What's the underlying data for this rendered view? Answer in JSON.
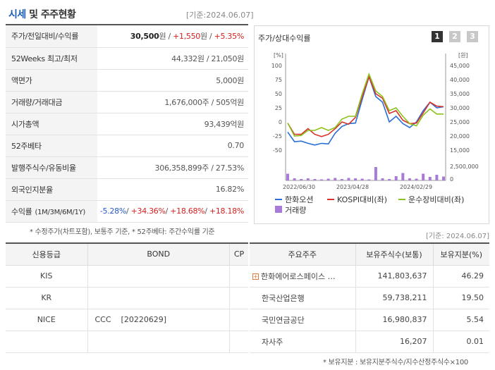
{
  "header": {
    "title_highlight": "시세",
    "title_rest": "및 주주현황",
    "date": "[기준:2024.06.07]"
  },
  "info_rows": [
    {
      "label": "주가/전일대비/수익률",
      "parts": [
        {
          "t": "30,500",
          "c": "b"
        },
        {
          "t": "원 / ",
          "c": ""
        },
        {
          "t": "+1,550",
          "c": "red"
        },
        {
          "t": "원 / ",
          "c": ""
        },
        {
          "t": "+5.35%",
          "c": "red"
        }
      ]
    },
    {
      "label": "52Weeks 최고/최저",
      "parts": [
        {
          "t": "44,332원 / 21,050원",
          "c": ""
        }
      ]
    },
    {
      "label": "액면가",
      "parts": [
        {
          "t": "5,000원",
          "c": ""
        }
      ]
    },
    {
      "label": "거래량/거래대금",
      "parts": [
        {
          "t": "1,676,000주 / 505억원",
          "c": ""
        }
      ]
    },
    {
      "label": "시가총액",
      "parts": [
        {
          "t": "93,439억원",
          "c": ""
        }
      ]
    },
    {
      "label": "52주베타",
      "parts": [
        {
          "t": "0.70",
          "c": ""
        }
      ]
    },
    {
      "label": "발행주식수/유동비율",
      "parts": [
        {
          "t": "306,358,899주 / 27.53%",
          "c": ""
        }
      ]
    },
    {
      "label": "외국인지분율",
      "parts": [
        {
          "t": "16.82%",
          "c": ""
        }
      ]
    },
    {
      "label": "수익률",
      "label_small": "(1M/3M/6M/1Y)",
      "parts": [
        {
          "t": "-5.28%",
          "c": "blue"
        },
        {
          "t": "/ ",
          "c": ""
        },
        {
          "t": "+34.36%",
          "c": "red"
        },
        {
          "t": "/ ",
          "c": ""
        },
        {
          "t": "+18.68%",
          "c": "red"
        },
        {
          "t": "/ ",
          "c": ""
        },
        {
          "t": "+18.18%",
          "c": "red"
        }
      ]
    }
  ],
  "info_note": "* 수정주가(차트포함), 보통주 기준, * 52주베타: 주간수익률 기준",
  "chart_section": {
    "title": "주가/상대수익률",
    "tabs": [
      "1",
      "2",
      "3"
    ],
    "date": "[기준: 2024.06.07]"
  },
  "chart_data": {
    "type": "line",
    "left_axis_unit": "[%]",
    "right_axis_unit": "[원]",
    "left_ticks": [
      "100",
      "75",
      "50",
      "25",
      "0",
      "-25",
      "-50"
    ],
    "right_ticks": [
      "45,000",
      "40,000",
      "35,000",
      "30,000",
      "25,000",
      "20,000",
      "15,000"
    ],
    "vol_tick": "2,500,000",
    "vol_zero": "0",
    "x_labels": [
      "2022/06/30",
      "2023/04/28",
      "2024/02/29"
    ],
    "ylim_left": [
      -50,
      100
    ],
    "colors": {
      "price": "#2b6ed6",
      "kospi": "#d8332a",
      "sector": "#8cc21b",
      "volume": "#a77bd6"
    },
    "series": [
      {
        "name": "한화오션",
        "axis": "left",
        "values": [
          -18,
          -35,
          -34,
          -38,
          -41,
          -38,
          -39,
          -20,
          -8,
          -3,
          -2,
          40,
          80,
          45,
          35,
          0,
          10,
          -3,
          -10,
          0,
          20,
          35,
          25,
          27
        ]
      },
      {
        "name": "KOSPI대비(좌)",
        "axis": "left",
        "values": [
          -2,
          -22,
          -22,
          -12,
          -22,
          -26,
          -22,
          -12,
          0,
          -4,
          8,
          45,
          80,
          50,
          42,
          15,
          20,
          3,
          -3,
          -2,
          16,
          35,
          28,
          27
        ]
      },
      {
        "name": "운수장비대비(좌)",
        "axis": "left",
        "values": [
          -2,
          -25,
          -24,
          -15,
          -15,
          -10,
          -15,
          -10,
          5,
          10,
          10,
          50,
          85,
          55,
          45,
          20,
          25,
          10,
          -3,
          -7,
          12,
          23,
          14,
          14
        ]
      }
    ],
    "volume": {
      "name": "거래량",
      "values": [
        0.95,
        0.3,
        0.2,
        0.3,
        0.2,
        0.15,
        0.25,
        0.35,
        0.2,
        0.35,
        0.3,
        0.25,
        0.15,
        1.9,
        0.3,
        0.2,
        0.6,
        1.05,
        0.3,
        0.25,
        0.95,
        0.5,
        0.8,
        0.55
      ]
    },
    "legend": [
      "한화오션",
      "KOSPI대비(좌)",
      "운수장비대비(좌)",
      "거래량"
    ]
  },
  "credit": {
    "headers": [
      "신용등급",
      "BOND",
      "CP"
    ],
    "rows": [
      [
        "KIS",
        "",
        ""
      ],
      [
        "KR",
        "",
        ""
      ],
      [
        "NICE",
        "CCC    [20220629]",
        ""
      ],
      [
        "",
        "",
        ""
      ]
    ]
  },
  "holders": {
    "headers": [
      "주요주주",
      "보유주식수(보통)",
      "보유지분(%)"
    ],
    "rows": [
      [
        "한화에어로스페이스 …",
        "141,803,637",
        "46.29"
      ],
      [
        "한국산업은행",
        "59,738,211",
        "19.50"
      ],
      [
        "국민연금공단",
        "16,980,837",
        "5.54"
      ],
      [
        "자사주",
        "16,207",
        "0.01"
      ]
    ],
    "note": "* 보유지분 : 보유지분주식수/지수산정주식수×100"
  }
}
